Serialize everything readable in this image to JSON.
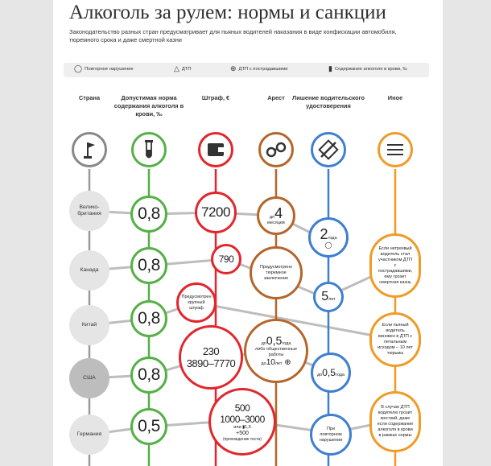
{
  "title": "Алкоголь за рулем: нормы и санкции",
  "subtitle": "Законодательство разных стран предусматривает для пьяных водителей наказания в виде конфискации автомобиля, тюремного срока и даже смертной казни",
  "legend": [
    {
      "icon": "repeat-icon",
      "glyph": "◯",
      "label": "Повторное нарушение"
    },
    {
      "icon": "accident-triangle-icon",
      "glyph": "△",
      "label": "ДТП"
    },
    {
      "icon": "plus-circle-icon",
      "glyph": "⊕",
      "label": "ДТП с пострадавшими"
    },
    {
      "icon": "blood-test-icon",
      "glyph": "▮",
      "label": "Содержание алкоголя в крови, ‰"
    }
  ],
  "columns": [
    {
      "id": "country",
      "label": "Страна",
      "color": "#888888"
    },
    {
      "id": "norm",
      "label": "Допустимая норма содержания алкоголя в крови, ‰",
      "color": "#55b046"
    },
    {
      "id": "fine",
      "label": "Штраф, €",
      "color": "#e2262d"
    },
    {
      "id": "arrest",
      "label": "Арест",
      "color": "#b5652a"
    },
    {
      "id": "license",
      "label": "Лишение водительского удостоверения",
      "color": "#3e7fcf"
    },
    {
      "id": "other",
      "label": "Иное",
      "color": "#ef9b26"
    }
  ],
  "countries": [
    "Велико-британия",
    "Канада",
    "Китай",
    "США",
    "Германия"
  ],
  "norms": [
    "0,8",
    "0,8",
    "0,8",
    "0,8",
    "0,5"
  ],
  "fines": {
    "uk": "7200",
    "canada": "790",
    "china": "Предусмотрен крупный штраф",
    "usa_line1": "230",
    "usa_line2": "3890–7770",
    "germany_line1": "500",
    "germany_line2": "1000–3000",
    "germany_or": "или",
    "germany_value": "1,6",
    "germany_line3": "+500",
    "germany_note": "(прохождение теста)"
  },
  "arrests": {
    "uk_prefix": "до",
    "uk_value": "4",
    "uk_unit": "месяцев",
    "canada": "Предусмотрено тюремное заключение",
    "usa_prefix": "до",
    "usa_value": "0,5",
    "usa_unit": "года",
    "usa_or": "либо общественные работы",
    "usa_prefix2": "до",
    "usa_value2": "10",
    "usa_unit2": "лет"
  },
  "licenses": {
    "uk_value": "2",
    "uk_unit": "года",
    "canada_value": "5",
    "canada_unit": "лет",
    "usa_prefix": "до",
    "usa_value": "0,5",
    "usa_unit": "года",
    "germany": "При повторном нарушении"
  },
  "other": {
    "canada": "Если нетрезвый водитель стал участником ДТП с пострадавшими, ему грозит смертная казнь",
    "china": "Если пьяный водитель виновен в ДТП с летальным исходом – 10 лет тюрьмы",
    "germany": "В случае ДТП водителю грозит жесткий, даже если содержание алкоголя в крови в рамках нормы"
  }
}
